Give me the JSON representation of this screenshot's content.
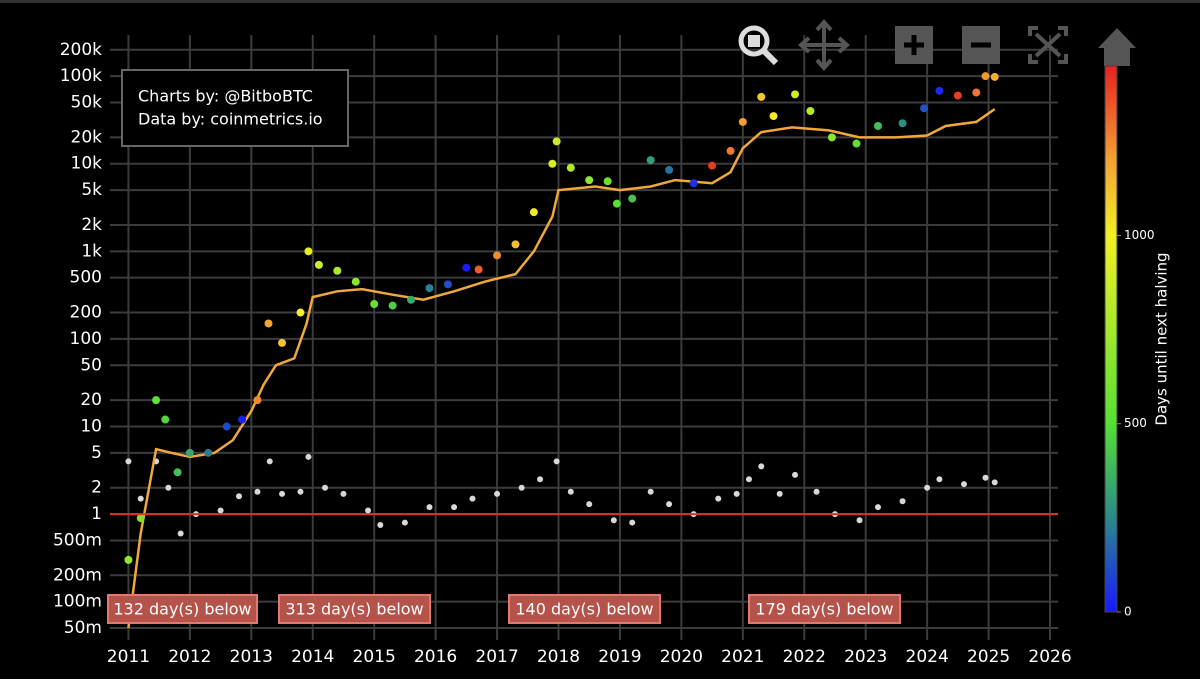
{
  "chart_data": {
    "type": "scatter",
    "credits": [
      "Charts by: @BitboBTC",
      "Data by: coinmetrics.io"
    ],
    "xlim": [
      2010.7,
      2026.13
    ],
    "xticks": [
      2011,
      2012,
      2013,
      2014,
      2015,
      2016,
      2017,
      2018,
      2019,
      2020,
      2021,
      2022,
      2023,
      2024,
      2025,
      2026
    ],
    "ylim": [
      0.0365,
      295000
    ],
    "log_y": true,
    "grid": true,
    "yticks": [
      {
        "value": 0.05,
        "label": "50m"
      },
      {
        "value": 0.1,
        "label": "100m"
      },
      {
        "value": 0.2,
        "label": "200m"
      },
      {
        "value": 0.5,
        "label": "500m"
      },
      1,
      2,
      5,
      10,
      20,
      50,
      100,
      200,
      500,
      {
        "value": 1000,
        "label": "1k"
      },
      {
        "value": 2000,
        "label": "2k"
      },
      {
        "value": 5000,
        "label": "5k"
      },
      {
        "value": 10000,
        "label": "10k"
      },
      {
        "value": 20000,
        "label": "20k"
      },
      {
        "value": 50000,
        "label": "50k"
      },
      {
        "value": 100000,
        "label": "100k"
      },
      {
        "value": 200000,
        "label": "200k"
      }
    ],
    "price": {
      "x": [
        2011.0,
        2011.2,
        2011.45,
        2011.6,
        2011.8,
        2012.0,
        2012.3,
        2012.6,
        2012.85,
        2013.1,
        2013.28,
        2013.5,
        2013.8,
        2013.93,
        2014.1,
        2014.4,
        2014.7,
        2015.0,
        2015.3,
        2015.6,
        2015.9,
        2016.2,
        2016.5,
        2016.7,
        2017.0,
        2017.3,
        2017.6,
        2017.9,
        2017.97,
        2018.2,
        2018.5,
        2018.8,
        2018.95,
        2019.2,
        2019.5,
        2019.8,
        2020.2,
        2020.5,
        2020.8,
        2021.0,
        2021.3,
        2021.5,
        2021.85,
        2022.1,
        2022.45,
        2022.85,
        2023.2,
        2023.6,
        2023.95,
        2024.2,
        2024.5,
        2024.8,
        2024.95,
        2025.1
      ],
      "values": [
        0.3,
        0.9,
        20,
        12,
        3,
        5,
        5,
        10,
        12,
        20,
        150,
        90,
        200,
        1000,
        700,
        600,
        450,
        250,
        240,
        280,
        380,
        420,
        650,
        620,
        900,
        1200,
        2800,
        10000,
        18000,
        9000,
        6500,
        6300,
        3500,
        4000,
        11000,
        8500,
        6000,
        9500,
        14000,
        30000,
        58000,
        35000,
        62000,
        40000,
        20000,
        17000,
        27000,
        29000,
        43000,
        68000,
        60000,
        65000,
        100000,
        98000
      ],
      "days_until_halving": [
        690,
        620,
        530,
        475,
        400,
        330,
        220,
        110,
        20,
        1250,
        1190,
        1110,
        1000,
        950,
        890,
        780,
        670,
        560,
        450,
        340,
        230,
        120,
        10,
        1330,
        1240,
        1130,
        1020,
        900,
        870,
        790,
        680,
        570,
        510,
        420,
        310,
        200,
        60,
        1400,
        1280,
        1200,
        1100,
        1020,
        890,
        800,
        670,
        530,
        400,
        260,
        130,
        40,
        1390,
        1280,
        1220,
        1170
      ]
    },
    "moving_average": {
      "color": "#f0a83a",
      "x": [
        2011.0,
        2011.2,
        2011.45,
        2011.7,
        2012.0,
        2012.4,
        2012.7,
        2013.0,
        2013.2,
        2013.4,
        2013.7,
        2013.9,
        2014.0,
        2014.4,
        2014.8,
        2015.3,
        2015.8,
        2016.3,
        2016.8,
        2017.3,
        2017.6,
        2017.9,
        2018.0,
        2018.6,
        2019.0,
        2019.5,
        2019.9,
        2020.5,
        2020.8,
        2021.0,
        2021.3,
        2021.8,
        2022.4,
        2022.9,
        2023.5,
        2024.0,
        2024.3,
        2024.8,
        2025.1
      ],
      "values": [
        0.05,
        0.6,
        5.5,
        5,
        4.5,
        5,
        7,
        15,
        30,
        50,
        60,
        150,
        300,
        350,
        370,
        320,
        280,
        350,
        450,
        550,
        1000,
        2500,
        5000,
        5500,
        5000,
        5500,
        6500,
        6000,
        8000,
        15000,
        23000,
        26000,
        24000,
        20000,
        20000,
        21000,
        27000,
        30000,
        42000
      ]
    },
    "ratio": {
      "color": "#d8d8d8",
      "x": [
        2011.0,
        2011.2,
        2011.45,
        2011.65,
        2011.85,
        2012.1,
        2012.5,
        2012.8,
        2013.1,
        2013.3,
        2013.5,
        2013.8,
        2013.93,
        2014.2,
        2014.5,
        2014.9,
        2015.1,
        2015.5,
        2015.9,
        2016.3,
        2016.6,
        2017.0,
        2017.4,
        2017.7,
        2017.97,
        2018.2,
        2018.5,
        2018.9,
        2019.2,
        2019.5,
        2019.8,
        2020.2,
        2020.6,
        2020.9,
        2021.1,
        2021.3,
        2021.6,
        2021.85,
        2022.2,
        2022.5,
        2022.9,
        2023.2,
        2023.6,
        2024.0,
        2024.2,
        2024.6,
        2024.95,
        2025.1
      ],
      "values": [
        4,
        1.5,
        4,
        2,
        0.6,
        1,
        1.1,
        1.6,
        1.8,
        4,
        1.7,
        1.8,
        4.5,
        2,
        1.7,
        1.1,
        0.75,
        0.8,
        1.2,
        1.2,
        1.5,
        1.7,
        2,
        2.5,
        4,
        1.8,
        1.3,
        0.85,
        0.8,
        1.8,
        1.3,
        1,
        1.5,
        1.7,
        2.5,
        3.5,
        1.7,
        2.8,
        1.8,
        1,
        0.85,
        1.2,
        1.4,
        2,
        2.5,
        2.2,
        2.6,
        2.3
      ]
    },
    "hline": 1,
    "hline_color": "#e0302a",
    "annotations": [
      "132 day(s) below",
      "313 day(s) below",
      "140 day(s) below",
      "179 day(s) below"
    ],
    "colorbar": {
      "title": "Days until next halving",
      "clim": [
        0,
        1450
      ],
      "cticks": [
        0,
        500,
        1000
      ],
      "colorscale": [
        [
          0,
          "#1818ff"
        ],
        [
          250,
          "#2a8a8a"
        ],
        [
          500,
          "#55e033"
        ],
        [
          1000,
          "#f2f024"
        ],
        [
          1200,
          "#f2a233"
        ],
        [
          1450,
          "#e82020"
        ]
      ]
    }
  }
}
